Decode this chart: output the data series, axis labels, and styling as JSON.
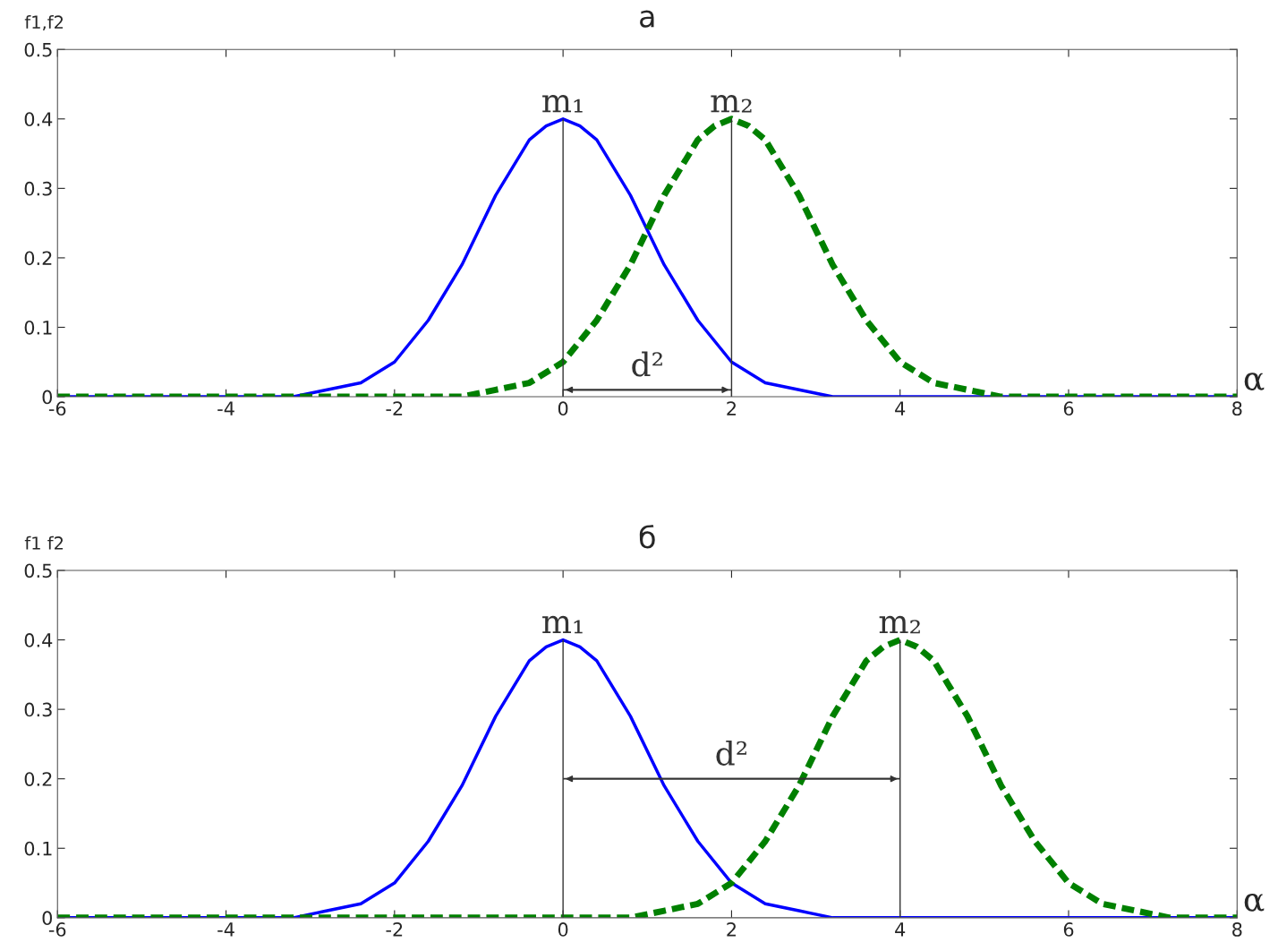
{
  "chart_data": [
    {
      "type": "line",
      "title": "а",
      "ylabel": "f1,f2",
      "xlabel": "α",
      "xlim": [
        -6,
        8
      ],
      "xticks": [
        -6,
        -4,
        -2,
        0,
        2,
        4,
        6,
        8
      ],
      "ylim": [
        0,
        0.5
      ],
      "yticks": [
        0,
        0.1,
        0.2,
        0.3,
        0.4,
        0.5
      ],
      "grid": false,
      "legend": false,
      "series": [
        {
          "color": "#0000ff",
          "line_style": "solid",
          "x": [
            -6,
            -3.2,
            -2.8,
            -2.4,
            -2,
            -1.6,
            -1.2,
            -0.8,
            -0.4,
            -0.2,
            0,
            0.2,
            0.4,
            0.8,
            1.2,
            1.6,
            2,
            2.4,
            2.8,
            3.2,
            8
          ],
          "values": [
            0,
            0,
            0.01,
            0.02,
            0.05,
            0.11,
            0.19,
            0.29,
            0.37,
            0.39,
            0.4,
            0.39,
            0.37,
            0.29,
            0.19,
            0.11,
            0.05,
            0.02,
            0.01,
            0,
            0
          ]
        },
        {
          "color": "#008000",
          "line_style": "dashed",
          "x": [
            -6,
            -1.2,
            -0.8,
            -0.4,
            0,
            0.4,
            0.8,
            1.2,
            1.6,
            1.8,
            2,
            2.2,
            2.4,
            2.8,
            3.2,
            3.6,
            4,
            4.4,
            4.8,
            5.2,
            8
          ],
          "values": [
            0,
            0,
            0.01,
            0.02,
            0.05,
            0.11,
            0.19,
            0.29,
            0.37,
            0.39,
            0.4,
            0.39,
            0.37,
            0.29,
            0.19,
            0.11,
            0.05,
            0.02,
            0.01,
            0,
            0
          ]
        }
      ],
      "ref_lines": [
        {
          "axis": "x",
          "value": 0,
          "label": "m₁",
          "color": "#333333"
        },
        {
          "axis": "x",
          "value": 2,
          "label": "m₂",
          "color": "#333333"
        },
        {
          "axis": "y",
          "value": 0.01,
          "label": "d²",
          "color": "#333333"
        }
      ]
    },
    {
      "type": "line",
      "title": "б",
      "ylabel": "f1 f2",
      "xlabel": "α",
      "xlim": [
        -6,
        8
      ],
      "xticks": [
        -6,
        -4,
        -2,
        0,
        2,
        4,
        6,
        8
      ],
      "ylim": [
        0,
        0.5
      ],
      "yticks": [
        0,
        0.1,
        0.2,
        0.3,
        0.4,
        0.5
      ],
      "grid": false,
      "legend": false,
      "series": [
        {
          "color": "#0000ff",
          "line_style": "solid",
          "x": [
            -6,
            -3.2,
            -2.8,
            -2.4,
            -2,
            -1.6,
            -1.2,
            -0.8,
            -0.4,
            -0.2,
            0,
            0.2,
            0.4,
            0.8,
            1.2,
            1.6,
            2,
            2.4,
            2.8,
            3.2,
            8
          ],
          "values": [
            0,
            0,
            0.01,
            0.02,
            0.05,
            0.11,
            0.19,
            0.29,
            0.37,
            0.39,
            0.4,
            0.39,
            0.37,
            0.29,
            0.19,
            0.11,
            0.05,
            0.02,
            0.01,
            0,
            0
          ]
        },
        {
          "color": "#008000",
          "line_style": "dashed",
          "x": [
            -6,
            0.8,
            1.2,
            1.6,
            2,
            2.4,
            2.8,
            3.2,
            3.6,
            3.8,
            4,
            4.2,
            4.4,
            4.8,
            5.2,
            5.6,
            6,
            6.4,
            6.8,
            7.2,
            8
          ],
          "values": [
            0,
            0,
            0.01,
            0.02,
            0.05,
            0.11,
            0.19,
            0.29,
            0.37,
            0.39,
            0.4,
            0.39,
            0.37,
            0.29,
            0.19,
            0.11,
            0.05,
            0.02,
            0.01,
            0,
            0
          ]
        }
      ],
      "ref_lines": [
        {
          "axis": "x",
          "value": 0,
          "label": "m₁",
          "color": "#333333"
        },
        {
          "axis": "x",
          "value": 4,
          "label": "m₂",
          "color": "#333333"
        },
        {
          "axis": "y",
          "value": 0.2,
          "label": "d²",
          "color": "#333333"
        }
      ]
    }
  ]
}
